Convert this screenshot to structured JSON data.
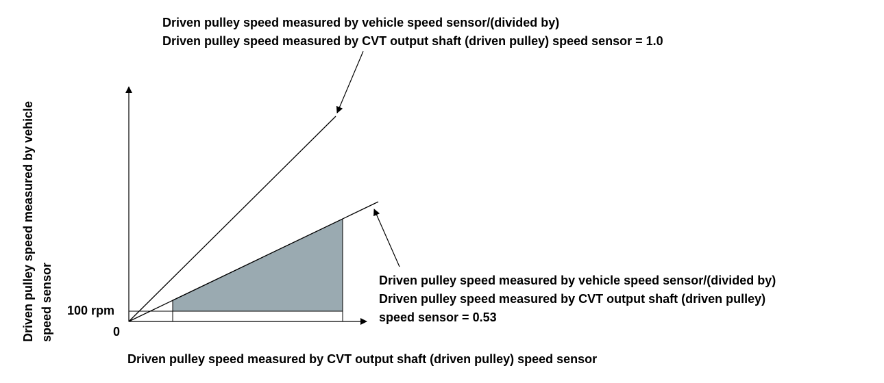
{
  "annotations": {
    "top_line1": "Driven pulley speed measured by vehicle speed sensor/(divided by)",
    "top_line2": "Driven pulley speed measured by CVT output shaft (driven pulley) speed sensor = 1.0",
    "bottom_line1": "Driven pulley speed measured by vehicle speed sensor/(divided by)",
    "bottom_line2": "Driven pulley speed measured by CVT output shaft (driven pulley)",
    "bottom_line3": "speed sensor = 0.53"
  },
  "axes": {
    "x_label": "Driven pulley speed measured by CVT output shaft (driven pulley) speed sensor",
    "y_label": "Driven pulley speed measured by vehicle speed sensor",
    "tick_100": "100 rpm",
    "tick_0": "0"
  },
  "colors": {
    "shaded_region": "#9aaab1",
    "lines": "#000000"
  }
}
